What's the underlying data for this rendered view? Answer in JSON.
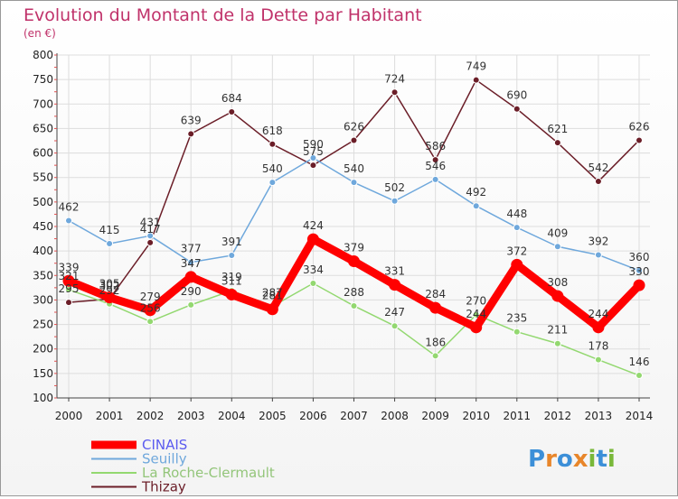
{
  "chart_data": {
    "type": "line",
    "title": "Evolution du Montant de la Dette par Habitant",
    "subtitle": "(en €)",
    "x": [
      2000,
      2001,
      2002,
      2003,
      2004,
      2005,
      2006,
      2007,
      2008,
      2009,
      2010,
      2011,
      2012,
      2013,
      2014
    ],
    "ylim": [
      100,
      800
    ],
    "yticks": [
      100,
      150,
      200,
      250,
      300,
      350,
      400,
      450,
      500,
      550,
      600,
      650,
      700,
      750,
      800
    ],
    "grid": true,
    "legend_position": "bottom-left",
    "series": [
      {
        "name": "CINAIS",
        "color": "#ff0000",
        "values": [
          339,
          305,
          279,
          347,
          311,
          281,
          424,
          379,
          331,
          284,
          244,
          372,
          308,
          244,
          330
        ]
      },
      {
        "name": "Seuilly",
        "color": "#6fa8dc",
        "values": [
          462,
          415,
          431,
          377,
          391,
          540,
          590,
          540,
          502,
          546,
          492,
          448,
          409,
          392,
          360
        ]
      },
      {
        "name": "La Roche-Clermault",
        "color": "#93d870",
        "values": [
          321,
          292,
          256,
          290,
          319,
          287,
          334,
          288,
          247,
          186,
          270,
          235,
          211,
          178,
          146
        ]
      },
      {
        "name": "Thizay",
        "color": "#6b1e28",
        "values": [
          295,
          302,
          417,
          639,
          684,
          618,
          575,
          626,
          724,
          586,
          749,
          690,
          621,
          542,
          626
        ]
      }
    ]
  },
  "watermark": {
    "text": "Proxiti"
  }
}
